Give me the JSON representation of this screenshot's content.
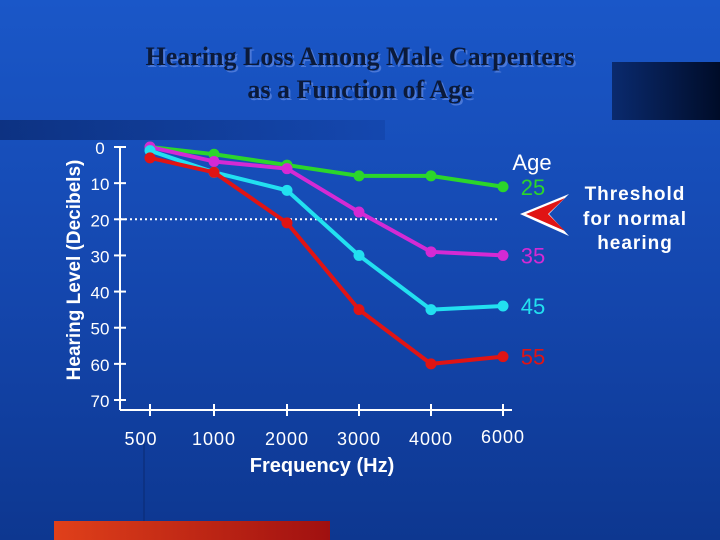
{
  "chart_data": {
    "type": "line",
    "title_line1": "Hearing Loss Among Male Carpenters",
    "title_line2": "as a Function of Age",
    "xlabel": "Frequency (Hz)",
    "ylabel": "Hearing Level (Decibels)",
    "x_categories": [
      "500",
      "1000",
      "2000",
      "3000",
      "4000",
      "6000"
    ],
    "y_ticks": [
      "0",
      "10",
      "20",
      "30",
      "40",
      "50",
      "60",
      "70"
    ],
    "ylim": [
      0,
      70
    ],
    "y_inverted": true,
    "legend_title": "Age",
    "series": [
      {
        "name": "25",
        "color": "#2bd62b",
        "values": [
          0,
          2,
          5,
          8,
          8,
          11
        ]
      },
      {
        "name": "35",
        "color": "#d42ad4",
        "values": [
          0,
          4,
          6,
          18,
          29,
          30
        ]
      },
      {
        "name": "45",
        "color": "#22e0f0",
        "values": [
          1,
          7,
          12,
          30,
          45,
          44
        ]
      },
      {
        "name": "55",
        "color": "#e01414",
        "values": [
          3,
          7,
          21,
          45,
          60,
          58
        ]
      }
    ],
    "threshold": {
      "value": 20,
      "label_lines": [
        "Threshold",
        "for normal",
        "hearing"
      ],
      "color": "#ffffff"
    },
    "grid": false
  }
}
